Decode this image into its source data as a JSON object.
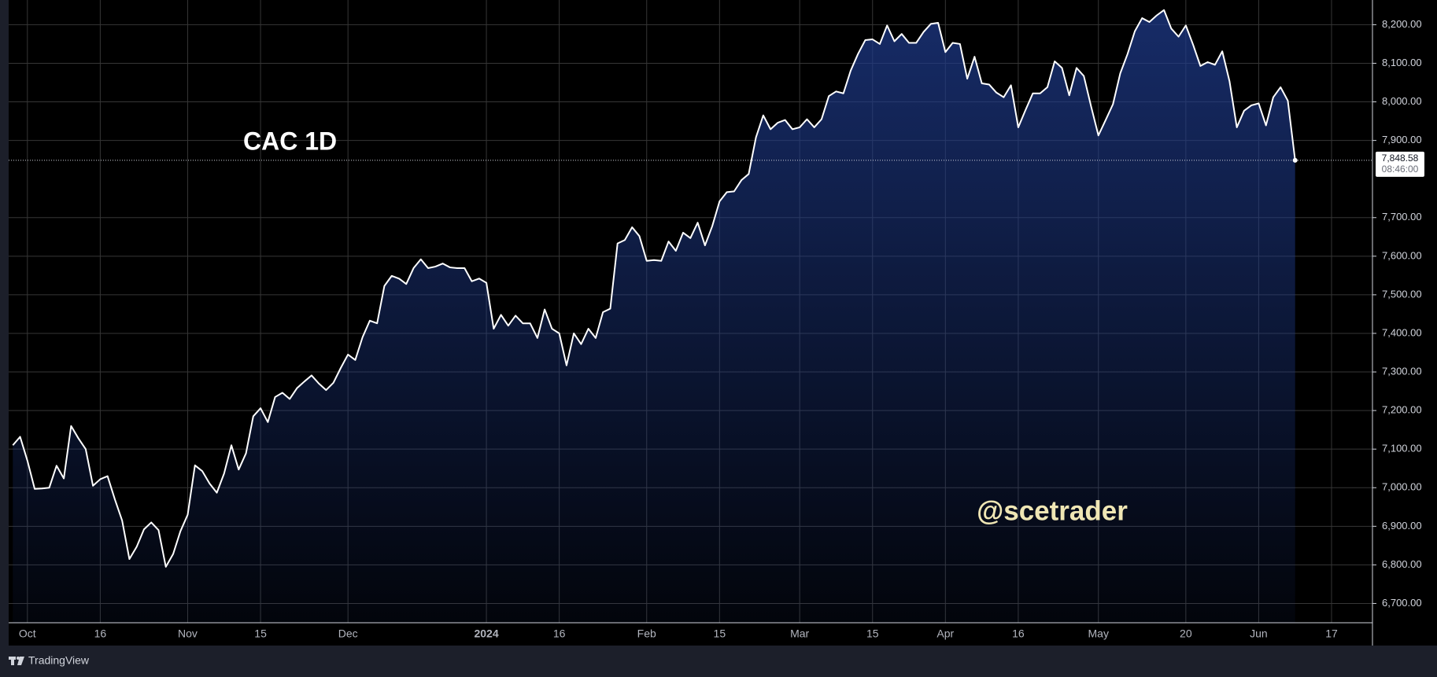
{
  "chart_data": {
    "type": "area",
    "title": "CAC 1D",
    "watermark": "@scetrader",
    "brand": "TradingView",
    "countdown": "08:46:00",
    "color": "#ffffff",
    "fill_color": "#1e3a8a",
    "grid": true,
    "categories": [
      null,
      null,
      "Oct",
      null,
      null,
      null,
      null,
      null,
      null,
      null,
      null,
      null,
      "16",
      null,
      null,
      null,
      null,
      null,
      null,
      null,
      null,
      null,
      null,
      null,
      "Nov",
      null,
      null,
      null,
      null,
      null,
      null,
      null,
      null,
      null,
      "15",
      null,
      null,
      null,
      null,
      null,
      null,
      null,
      null,
      null,
      null,
      null,
      "Dec",
      null,
      null,
      null,
      null,
      null,
      null,
      null,
      null,
      null,
      null,
      null,
      null,
      null,
      null,
      null,
      null,
      null,
      null,
      "2024",
      null,
      null,
      null,
      null,
      null,
      null,
      null,
      null,
      null,
      "16",
      null,
      null,
      null,
      null,
      null,
      null,
      null,
      null,
      null,
      null,
      null,
      "Feb",
      null,
      null,
      null,
      null,
      null,
      null,
      null,
      null,
      null,
      "15",
      null,
      null,
      null,
      null,
      null,
      null,
      null,
      null,
      null,
      null,
      "Mar",
      null,
      null,
      null,
      null,
      null,
      null,
      null,
      null,
      null,
      "15",
      null,
      null,
      null,
      null,
      null,
      null,
      null,
      null,
      null,
      "Apr",
      null,
      null,
      null,
      null,
      null,
      null,
      null,
      null,
      null,
      "16",
      null,
      null,
      null,
      null,
      null,
      null,
      null,
      null,
      null,
      null,
      "May",
      null,
      null,
      null,
      null,
      null,
      null,
      null,
      null,
      null,
      null,
      null,
      "20",
      null,
      null,
      null,
      null,
      null,
      null,
      null,
      null,
      null,
      "Jun",
      null,
      null,
      null,
      null,
      null,
      null,
      null,
      null,
      null,
      "17",
      null,
      null,
      null,
      null,
      null
    ],
    "values": [
      7110,
      7132,
      7070,
      6997,
      6998,
      7000,
      7057,
      7024,
      7160,
      7128,
      7100,
      7005,
      7022,
      7030,
      6970,
      6915,
      6815,
      6847,
      6892,
      6910,
      6890,
      6795,
      6828,
      6887,
      6930,
      7058,
      7043,
      7011,
      6987,
      7037,
      7110,
      7047,
      7089,
      7185,
      7206,
      7170,
      7235,
      7246,
      7230,
      7258,
      7275,
      7291,
      7270,
      7253,
      7272,
      7310,
      7345,
      7331,
      7390,
      7433,
      7426,
      7523,
      7549,
      7542,
      7528,
      7569,
      7592,
      7569,
      7573,
      7581,
      7571,
      7569,
      7569,
      7535,
      7542,
      7531,
      7412,
      7448,
      7420,
      7446,
      7426,
      7426,
      7388,
      7462,
      7412,
      7400,
      7317,
      7400,
      7372,
      7412,
      7388,
      7455,
      7464,
      7633,
      7642,
      7675,
      7652,
      7588,
      7590,
      7588,
      7638,
      7614,
      7661,
      7647,
      7687,
      7628,
      7678,
      7742,
      7766,
      7768,
      7797,
      7813,
      7908,
      7965,
      7929,
      7946,
      7953,
      7929,
      7934,
      7955,
      7934,
      7955,
      8015,
      8027,
      8022,
      8081,
      8124,
      8160,
      8162,
      8150,
      8198,
      8157,
      8176,
      8153,
      8153,
      8181,
      8202,
      8205,
      8129,
      8153,
      8150,
      8060,
      8117,
      8048,
      8045,
      8024,
      8012,
      8043,
      7934,
      7979,
      8022,
      8022,
      8038,
      8105,
      8088,
      8017,
      8088,
      8067,
      7988,
      7913,
      7953,
      7994,
      8074,
      8124,
      8183,
      8217,
      8207,
      8224,
      8238,
      8190,
      8169,
      8198,
      8148,
      8093,
      8103,
      8096,
      8131,
      8053,
      7934,
      7977,
      7991,
      7996,
      7939,
      8012,
      8038,
      8003,
      7848.58,
      null,
      null,
      null,
      null,
      null,
      null,
      null,
      null,
      null,
      null
    ],
    "last_price": {
      "value": 7848.58,
      "label": "7,848.58"
    },
    "ylim": [
      6650,
      8264
    ],
    "yticks": [
      {
        "value": 6700,
        "label": "6,700.00"
      },
      {
        "value": 6800,
        "label": "6,800.00"
      },
      {
        "value": 6900,
        "label": "6,900.00"
      },
      {
        "value": 7000,
        "label": "7,000.00"
      },
      {
        "value": 7100,
        "label": "7,100.00"
      },
      {
        "value": 7200,
        "label": "7,200.00"
      },
      {
        "value": 7300,
        "label": "7,300.00"
      },
      {
        "value": 7400,
        "label": "7,400.00"
      },
      {
        "value": 7500,
        "label": "7,500.00"
      },
      {
        "value": 7600,
        "label": "7,600.00"
      },
      {
        "value": 7700,
        "label": "7,700.00"
      },
      {
        "value": 7900,
        "label": "7,900.00"
      },
      {
        "value": 8000,
        "label": "8,000.00"
      },
      {
        "value": 8100,
        "label": "8,100.00"
      },
      {
        "value": 8200,
        "label": "8,200.00"
      }
    ]
  }
}
